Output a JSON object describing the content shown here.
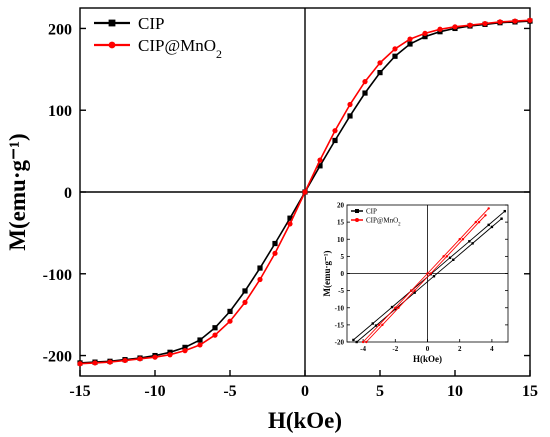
{
  "chart_data": [
    {
      "type": "line",
      "xlabel": "H(kOe)",
      "ylabel": "M(emu·g⁻¹)",
      "xlim": [
        -15,
        15
      ],
      "ylim": [
        -225,
        225
      ],
      "x_ticks": [
        -15,
        -10,
        -5,
        0,
        5,
        10,
        15
      ],
      "y_ticks": [
        -200,
        -100,
        0,
        100,
        200
      ],
      "legend": "top-left",
      "series": [
        {
          "name": "CIP",
          "color": "#000000",
          "marker": "square",
          "x": [
            -15,
            -14,
            -13,
            -12,
            -11,
            -10,
            -9,
            -8,
            -7,
            -6,
            -5,
            -4,
            -3,
            -2,
            -1,
            0,
            1,
            2,
            3,
            4,
            5,
            6,
            7,
            8,
            9,
            10,
            11,
            12,
            13,
            14,
            15
          ],
          "y": [
            -209,
            -208,
            -207,
            -205,
            -203,
            -200,
            -196,
            -190,
            -181,
            -166,
            -146,
            -121,
            -93,
            -63,
            -32,
            0,
            32,
            63,
            93,
            121,
            146,
            166,
            181,
            190,
            196,
            200,
            203,
            205,
            207,
            208,
            209
          ]
        },
        {
          "name": "CIP@MnO2",
          "color": "#ff0000",
          "marker": "circle",
          "x": [
            -15,
            -14,
            -13,
            -12,
            -11,
            -10,
            -9,
            -8,
            -7,
            -6,
            -5,
            -4,
            -3,
            -2,
            -1,
            0,
            1,
            2,
            3,
            4,
            5,
            6,
            7,
            8,
            9,
            10,
            11,
            12,
            13,
            14,
            15
          ],
          "y": [
            -210,
            -209,
            -208,
            -206,
            -204,
            -202,
            -199,
            -194,
            -187,
            -175,
            -158,
            -135,
            -107,
            -75,
            -39,
            0,
            39,
            75,
            107,
            135,
            158,
            175,
            187,
            194,
            199,
            202,
            204,
            206,
            208,
            209,
            210
          ]
        }
      ]
    },
    {
      "type": "line",
      "inset": true,
      "xlabel": "H(kOe)",
      "ylabel": "M(emu·g⁻¹)",
      "xlim": [
        -5,
        5
      ],
      "ylim": [
        -20,
        20
      ],
      "x_ticks": [
        -4,
        -2,
        0,
        2,
        4
      ],
      "y_ticks": [
        -20,
        -15,
        -10,
        -5,
        0,
        5,
        10,
        15,
        20
      ],
      "legend": "top-left",
      "series": [
        {
          "name": "CIP",
          "color": "#000000",
          "marker": "square",
          "branches": [
            {
              "x": [
                -4.6,
                -3.4,
                -2.2,
                -1.0,
                0.2,
                1.4,
                2.6,
                3.8,
                4.8
              ],
              "y": [
                -19.4,
                -14.6,
                -9.8,
                -5.0,
                -0.2,
                4.6,
                9.4,
                14.2,
                18.2
              ]
            },
            {
              "x": [
                -4.4,
                -3.2,
                -2.0,
                -0.8,
                0.4,
                1.6,
                2.8,
                4.0,
                4.6
              ],
              "y": [
                -20.0,
                -15.2,
                -10.4,
                -5.6,
                -0.8,
                4.0,
                8.8,
                13.6,
                16.0
              ]
            }
          ]
        },
        {
          "name": "CIP@MnO2",
          "color": "#ff0000",
          "marker": "circle",
          "branches": [
            {
              "x": [
                -4.0,
                -3.0,
                -2.0,
                -1.0,
                0.0,
                1.0,
                2.0,
                3.0,
                3.8
              ],
              "y": [
                -20.0,
                -15.0,
                -10.0,
                -5.0,
                0.0,
                5.0,
                10.0,
                15.0,
                19.0
              ]
            },
            {
              "x": [
                -3.8,
                -2.8,
                -1.8,
                -0.8,
                0.2,
                1.2,
                2.2,
                3.2,
                3.6
              ],
              "y": [
                -20.0,
                -15.0,
                -10.0,
                -5.0,
                0.0,
                5.0,
                10.0,
                15.0,
                17.0
              ]
            }
          ]
        }
      ]
    }
  ]
}
